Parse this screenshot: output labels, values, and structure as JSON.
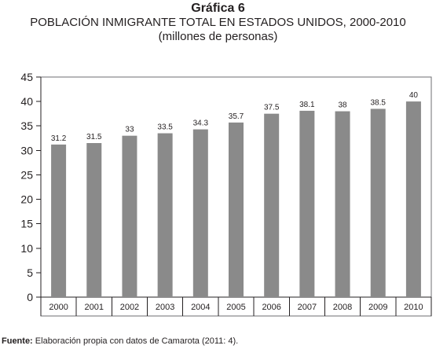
{
  "header": {
    "number": "Gráfica 6",
    "title": "POBLACIÓN INMIGRANTE TOTAL EN ESTADOS UNIDOS, 2000-2010",
    "subtitle": "(millones de personas)"
  },
  "source": {
    "label": "Fuente:",
    "text": " Elaboración propia con datos de Camarota (2011: 4)."
  },
  "colors": {
    "bar": "#8a8a8a"
  },
  "chart_data": {
    "type": "bar",
    "title": "POBLACIÓN INMIGRANTE TOTAL EN ESTADOS UNIDOS, 2000-2010",
    "subtitle": "(millones de personas)",
    "categories": [
      "2000",
      "2001",
      "2002",
      "2003",
      "2004",
      "2005",
      "2006",
      "2007",
      "2008",
      "2009",
      "2010"
    ],
    "values": [
      31.2,
      31.5,
      33,
      33.5,
      34.3,
      35.7,
      37.5,
      38.1,
      38,
      38.5,
      40
    ],
    "value_labels": [
      "31.2",
      "31.5",
      "33",
      "33.5",
      "34.3",
      "35.7",
      "37.5",
      "38.1",
      "38",
      "38.5",
      "40"
    ],
    "xlabel": "",
    "ylabel": "",
    "ylim": [
      0,
      45
    ],
    "yticks": [
      0,
      5,
      10,
      15,
      20,
      25,
      30,
      35,
      40,
      45
    ],
    "grid": false,
    "legend": "none"
  }
}
